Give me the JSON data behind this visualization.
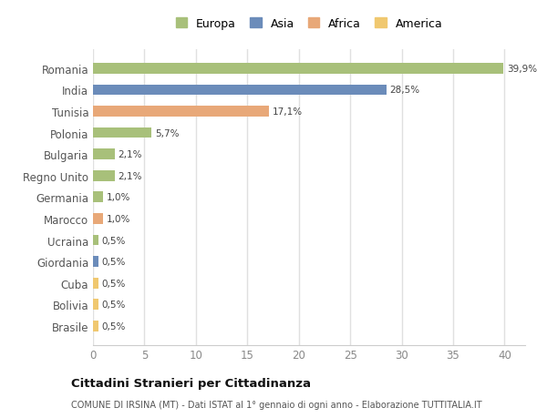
{
  "categories": [
    "Brasile",
    "Bolivia",
    "Cuba",
    "Giordania",
    "Ucraina",
    "Marocco",
    "Germania",
    "Regno Unito",
    "Bulgaria",
    "Polonia",
    "Tunisia",
    "India",
    "Romania"
  ],
  "values": [
    0.5,
    0.5,
    0.5,
    0.5,
    0.5,
    1.0,
    1.0,
    2.1,
    2.1,
    5.7,
    17.1,
    28.5,
    39.9
  ],
  "labels": [
    "0,5%",
    "0,5%",
    "0,5%",
    "0,5%",
    "0,5%",
    "1,0%",
    "1,0%",
    "2,1%",
    "2,1%",
    "5,7%",
    "17,1%",
    "28,5%",
    "39,9%"
  ],
  "colors": [
    "#f0c870",
    "#f0c870",
    "#f0c870",
    "#6b8cba",
    "#a8c07a",
    "#e8a878",
    "#a8c07a",
    "#a8c07a",
    "#a8c07a",
    "#a8c07a",
    "#e8a878",
    "#6b8cba",
    "#a8c07a"
  ],
  "legend": [
    {
      "label": "Europa",
      "color": "#a8c07a"
    },
    {
      "label": "Asia",
      "color": "#6b8cba"
    },
    {
      "label": "Africa",
      "color": "#e8a878"
    },
    {
      "label": "America",
      "color": "#f0c870"
    }
  ],
  "xlim": [
    0,
    42
  ],
  "xticks": [
    0,
    5,
    10,
    15,
    20,
    25,
    30,
    35,
    40
  ],
  "title": "Cittadini Stranieri per Cittadinanza",
  "subtitle": "COMUNE DI IRSINA (MT) - Dati ISTAT al 1° gennaio di ogni anno - Elaborazione TUTTITALIA.IT",
  "bg_color": "#ffffff",
  "grid_color": "#e0e0e0",
  "bar_height": 0.5
}
